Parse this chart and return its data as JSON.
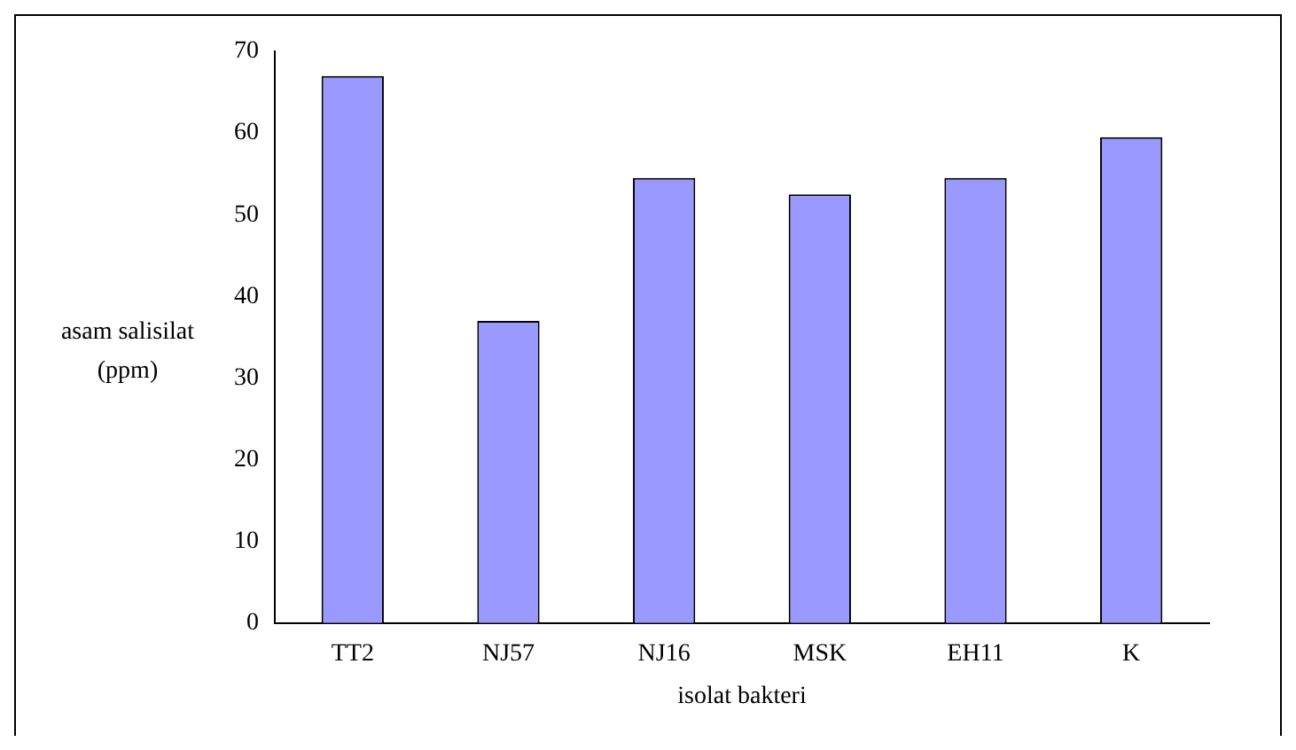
{
  "chart_data": {
    "type": "bar",
    "xlabel": "isolat bakteri",
    "ylabel": "asam salisilat (ppm)",
    "categories": [
      "TT2",
      "NJ57",
      "NJ16",
      "MSK",
      "EH11",
      "K"
    ],
    "values": [
      67,
      37,
      54.5,
      52.5,
      54.5,
      59.5
    ],
    "color": "#9999ff",
    "ylim": [
      0,
      70
    ],
    "yticks": [
      0,
      10,
      20,
      30,
      40,
      50,
      60,
      70
    ],
    "grid": false,
    "legend": false
  }
}
